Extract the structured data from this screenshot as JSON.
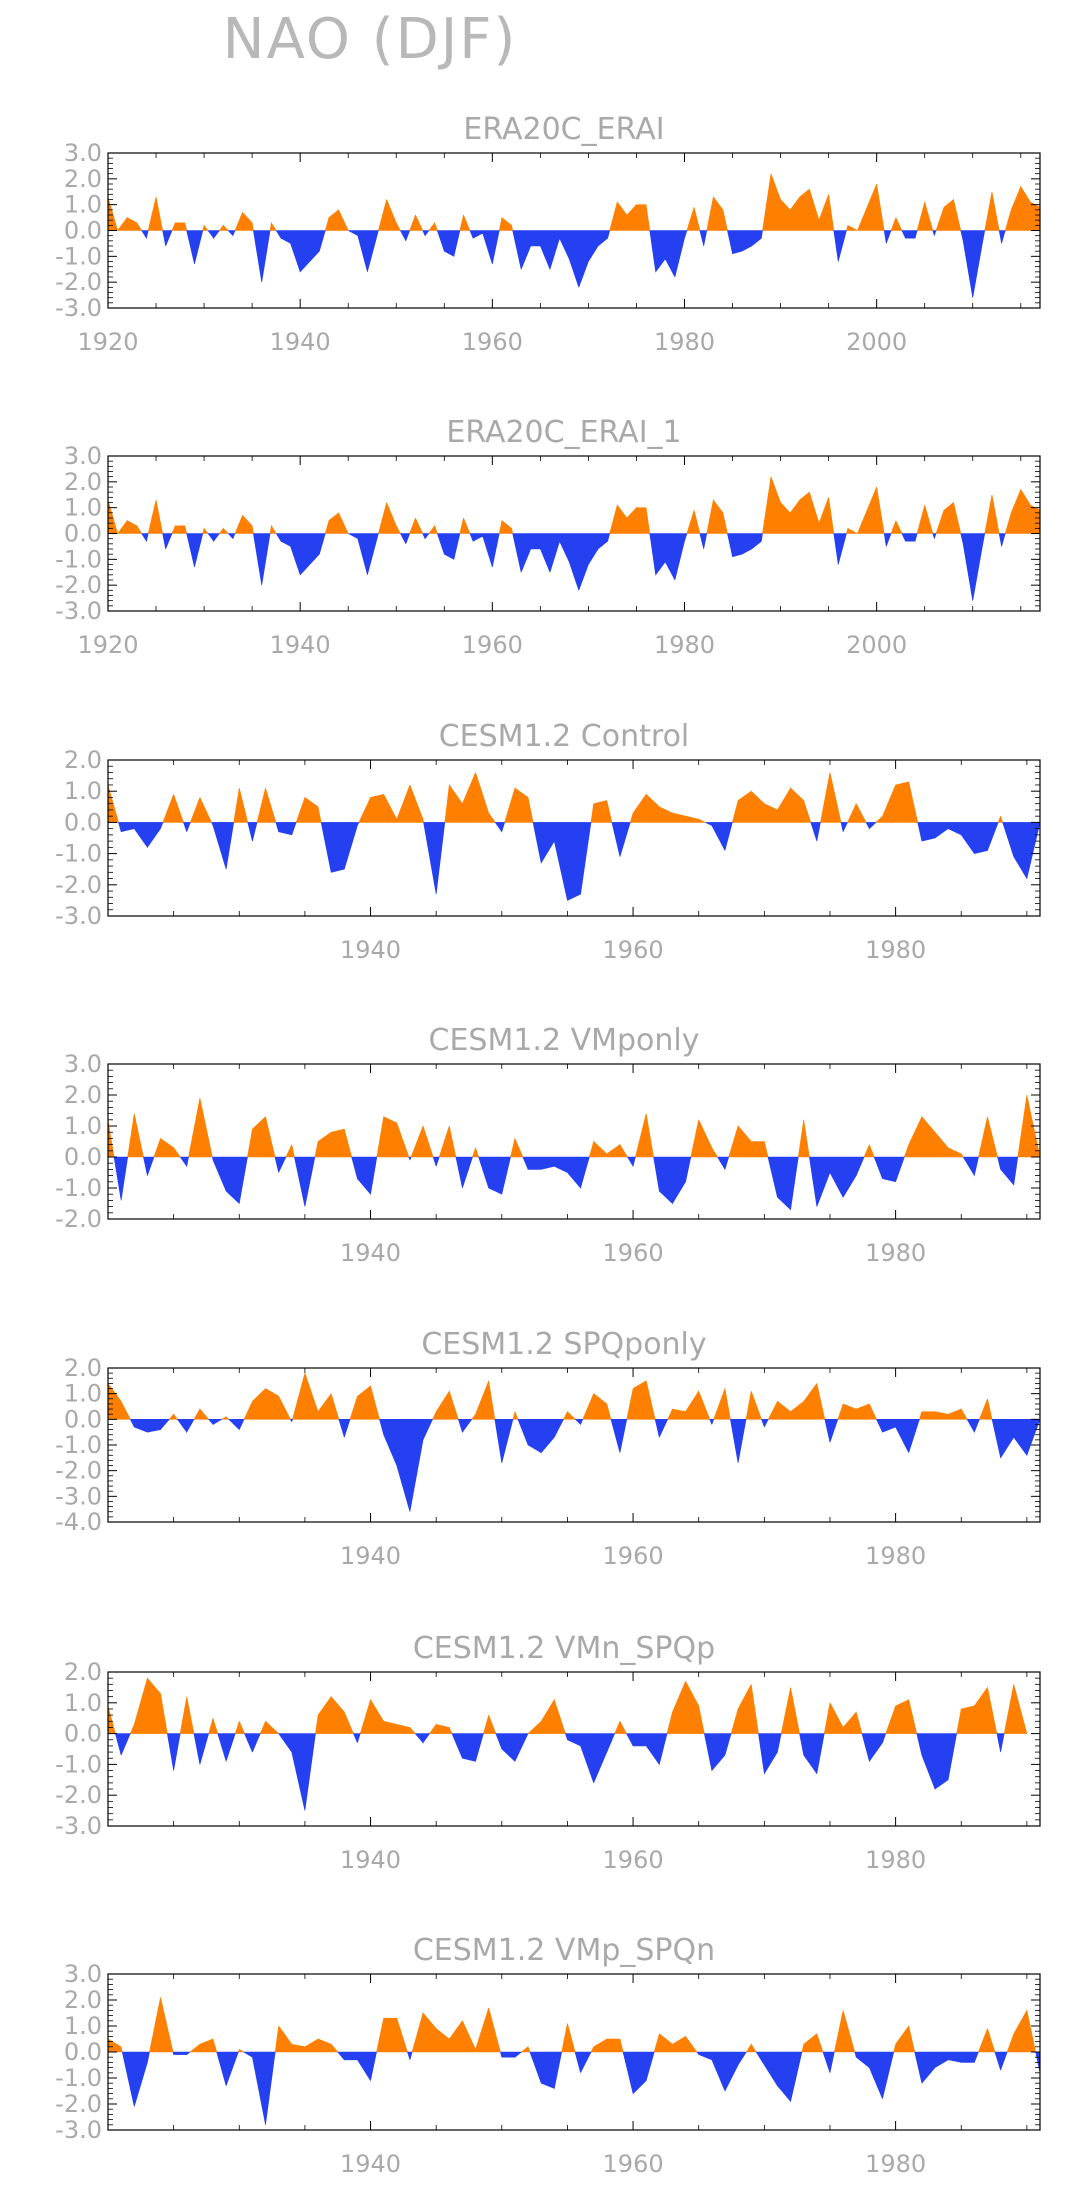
{
  "title": "NAO (DJF)",
  "colors": {
    "positive": "#ff8000",
    "negative": "#2540f0",
    "axis": "#000000",
    "text": "#a9a9a9"
  },
  "chart_data": [
    {
      "type": "area",
      "title": "ERA20C_ERAI",
      "xlim": [
        1920,
        2017
      ],
      "ylim": [
        -3,
        3
      ],
      "yticks": [
        "3.0",
        "2.0",
        "1.0",
        "0.0",
        "-1.0",
        "-2.0",
        "-3.0"
      ],
      "xticks": [
        "1920",
        "1940",
        "1960",
        "1980",
        "2000"
      ],
      "x": [
        1920,
        1921,
        1922,
        1923,
        1924,
        1925,
        1926,
        1927,
        1928,
        1929,
        1930,
        1931,
        1932,
        1933,
        1934,
        1935,
        1936,
        1937,
        1938,
        1939,
        1940,
        1941,
        1942,
        1943,
        1944,
        1945,
        1946,
        1947,
        1948,
        1949,
        1950,
        1951,
        1952,
        1953,
        1954,
        1955,
        1956,
        1957,
        1958,
        1959,
        1960,
        1961,
        1962,
        1963,
        1964,
        1965,
        1966,
        1967,
        1968,
        1969,
        1970,
        1971,
        1972,
        1973,
        1974,
        1975,
        1976,
        1977,
        1978,
        1979,
        1980,
        1981,
        1982,
        1983,
        1984,
        1985,
        1986,
        1987,
        1988,
        1989,
        1990,
        1991,
        1992,
        1993,
        1994,
        1995,
        1996,
        1997,
        1998,
        1999,
        2000,
        2001,
        2002,
        2003,
        2004,
        2005,
        2006,
        2007,
        2008,
        2009,
        2010,
        2011,
        2012,
        2013,
        2014,
        2015,
        2016,
        2017
      ],
      "values": [
        1.3,
        0.0,
        0.5,
        0.3,
        -0.3,
        1.3,
        -0.6,
        0.3,
        0.3,
        -1.3,
        0.2,
        -0.3,
        0.2,
        -0.2,
        0.7,
        0.3,
        -2.0,
        0.3,
        -0.3,
        -0.5,
        -1.6,
        -1.2,
        -0.8,
        0.5,
        0.8,
        0.0,
        -0.2,
        -1.6,
        -0.2,
        1.2,
        0.3,
        -0.4,
        0.6,
        -0.2,
        0.3,
        -0.8,
        -1.0,
        0.6,
        -0.3,
        -0.1,
        -1.3,
        0.5,
        0.2,
        -1.5,
        -0.6,
        -0.6,
        -1.5,
        -0.3,
        -1.1,
        -2.2,
        -1.2,
        -0.6,
        -0.3,
        1.1,
        0.6,
        1.0,
        1.0,
        -1.6,
        -1.1,
        -1.8,
        -0.3,
        0.9,
        -0.6,
        1.3,
        0.8,
        -0.9,
        -0.8,
        -0.6,
        -0.3,
        2.2,
        1.2,
        0.8,
        1.3,
        1.6,
        0.4,
        1.4,
        -1.2,
        0.2,
        0.0,
        0.9,
        1.8,
        -0.5,
        0.5,
        -0.3,
        -0.3,
        1.1,
        -0.2,
        0.9,
        1.2,
        -0.4,
        -2.6,
        -0.5,
        1.5,
        -0.5,
        0.8,
        1.7,
        1.1,
        0.9
      ]
    },
    {
      "type": "area",
      "title": "ERA20C_ERAI_1",
      "xlim": [
        1920,
        2017
      ],
      "ylim": [
        -3,
        3
      ],
      "yticks": [
        "3.0",
        "2.0",
        "1.0",
        "0.0",
        "-1.0",
        "-2.0",
        "-3.0"
      ],
      "xticks": [
        "1920",
        "1940",
        "1960",
        "1980",
        "2000"
      ],
      "x": [
        1920,
        1921,
        1922,
        1923,
        1924,
        1925,
        1926,
        1927,
        1928,
        1929,
        1930,
        1931,
        1932,
        1933,
        1934,
        1935,
        1936,
        1937,
        1938,
        1939,
        1940,
        1941,
        1942,
        1943,
        1944,
        1945,
        1946,
        1947,
        1948,
        1949,
        1950,
        1951,
        1952,
        1953,
        1954,
        1955,
        1956,
        1957,
        1958,
        1959,
        1960,
        1961,
        1962,
        1963,
        1964,
        1965,
        1966,
        1967,
        1968,
        1969,
        1970,
        1971,
        1972,
        1973,
        1974,
        1975,
        1976,
        1977,
        1978,
        1979,
        1980,
        1981,
        1982,
        1983,
        1984,
        1985,
        1986,
        1987,
        1988,
        1989,
        1990,
        1991,
        1992,
        1993,
        1994,
        1995,
        1996,
        1997,
        1998,
        1999,
        2000,
        2001,
        2002,
        2003,
        2004,
        2005,
        2006,
        2007,
        2008,
        2009,
        2010,
        2011,
        2012,
        2013,
        2014,
        2015,
        2016,
        2017
      ],
      "values": [
        1.3,
        0.0,
        0.5,
        0.3,
        -0.3,
        1.3,
        -0.6,
        0.3,
        0.3,
        -1.3,
        0.2,
        -0.3,
        0.2,
        -0.2,
        0.7,
        0.3,
        -2.0,
        0.3,
        -0.3,
        -0.5,
        -1.6,
        -1.2,
        -0.8,
        0.5,
        0.8,
        0.0,
        -0.2,
        -1.6,
        -0.2,
        1.2,
        0.3,
        -0.4,
        0.6,
        -0.2,
        0.3,
        -0.8,
        -1.0,
        0.6,
        -0.3,
        -0.1,
        -1.3,
        0.5,
        0.2,
        -1.5,
        -0.6,
        -0.6,
        -1.5,
        -0.3,
        -1.1,
        -2.2,
        -1.2,
        -0.6,
        -0.3,
        1.1,
        0.6,
        1.0,
        1.0,
        -1.6,
        -1.1,
        -1.8,
        -0.3,
        0.9,
        -0.6,
        1.3,
        0.8,
        -0.9,
        -0.8,
        -0.6,
        -0.3,
        2.2,
        1.2,
        0.8,
        1.3,
        1.6,
        0.4,
        1.4,
        -1.2,
        0.2,
        0.0,
        0.9,
        1.8,
        -0.5,
        0.5,
        -0.3,
        -0.3,
        1.1,
        -0.2,
        0.9,
        1.2,
        -0.4,
        -2.6,
        -0.5,
        1.5,
        -0.5,
        0.8,
        1.7,
        1.1,
        0.9
      ]
    },
    {
      "type": "area",
      "title": "CESM1.2 Control",
      "xlim": [
        1920,
        1991
      ],
      "ylim": [
        -3,
        2
      ],
      "yticks": [
        "2.0",
        "1.0",
        "0.0",
        "-1.0",
        "-2.0",
        "-3.0"
      ],
      "xticks": [
        "1940",
        "1960",
        "1980"
      ],
      "x": [
        1920,
        1921,
        1922,
        1923,
        1924,
        1925,
        1926,
        1927,
        1928,
        1929,
        1930,
        1931,
        1932,
        1933,
        1934,
        1935,
        1936,
        1937,
        1938,
        1939,
        1940,
        1941,
        1942,
        1943,
        1944,
        1945,
        1946,
        1947,
        1948,
        1949,
        1950,
        1951,
        1952,
        1953,
        1954,
        1955,
        1956,
        1957,
        1958,
        1959,
        1960,
        1961,
        1962,
        1963,
        1964,
        1965,
        1966,
        1967,
        1968,
        1969,
        1970,
        1971,
        1972,
        1973,
        1974,
        1975,
        1976,
        1977,
        1978,
        1979,
        1980,
        1981,
        1982,
        1983,
        1984,
        1985,
        1986,
        1987,
        1988,
        1989,
        1990,
        1991
      ],
      "values": [
        1.2,
        -0.3,
        -0.2,
        -0.8,
        -0.2,
        0.9,
        -0.3,
        0.8,
        -0.1,
        -1.5,
        1.1,
        -0.6,
        1.1,
        -0.3,
        -0.4,
        0.8,
        0.5,
        -1.6,
        -1.5,
        -0.1,
        0.8,
        0.9,
        0.1,
        1.2,
        0.1,
        -2.3,
        1.2,
        0.6,
        1.6,
        0.3,
        -0.3,
        1.1,
        0.8,
        -1.3,
        -0.6,
        -2.5,
        -2.3,
        0.6,
        0.7,
        -1.1,
        0.3,
        0.9,
        0.5,
        0.3,
        0.2,
        0.1,
        -0.1,
        -0.9,
        0.7,
        1.0,
        0.6,
        0.4,
        1.1,
        0.7,
        -0.6,
        1.6,
        -0.3,
        0.6,
        -0.2,
        0.2,
        1.2,
        1.3,
        -0.6,
        -0.5,
        -0.2,
        -0.4,
        -1.0,
        -0.9,
        0.2,
        -1.1,
        -1.8,
        0.0
      ]
    },
    {
      "type": "area",
      "title": "CESM1.2 VMponly",
      "xlim": [
        1920,
        1991
      ],
      "ylim": [
        -2,
        3
      ],
      "yticks": [
        "3.0",
        "2.0",
        "1.0",
        "0.0",
        "-1.0",
        "-2.0"
      ],
      "xticks": [
        "1940",
        "1960",
        "1980"
      ],
      "x": [
        1920,
        1921,
        1922,
        1923,
        1924,
        1925,
        1926,
        1927,
        1928,
        1929,
        1930,
        1931,
        1932,
        1933,
        1934,
        1935,
        1936,
        1937,
        1938,
        1939,
        1940,
        1941,
        1942,
        1943,
        1944,
        1945,
        1946,
        1947,
        1948,
        1949,
        1950,
        1951,
        1952,
        1953,
        1954,
        1955,
        1956,
        1957,
        1958,
        1959,
        1960,
        1961,
        1962,
        1963,
        1964,
        1965,
        1966,
        1967,
        1968,
        1969,
        1970,
        1971,
        1972,
        1973,
        1974,
        1975,
        1976,
        1977,
        1978,
        1979,
        1980,
        1981,
        1982,
        1983,
        1984,
        1985,
        1986,
        1987,
        1988,
        1989,
        1990,
        1991
      ],
      "values": [
        1.2,
        -1.4,
        1.4,
        -0.6,
        0.6,
        0.3,
        -0.3,
        1.9,
        -0.1,
        -1.1,
        -1.5,
        0.9,
        1.3,
        -0.5,
        0.4,
        -1.6,
        0.5,
        0.8,
        0.9,
        -0.7,
        -1.2,
        1.3,
        1.1,
        -0.1,
        1.0,
        -0.3,
        1.0,
        -1.0,
        0.3,
        -1.0,
        -1.2,
        0.6,
        -0.4,
        -0.4,
        -0.3,
        -0.5,
        -1.0,
        0.5,
        0.1,
        0.4,
        -0.3,
        1.4,
        -1.1,
        -1.5,
        -0.8,
        1.2,
        0.3,
        -0.4,
        1.0,
        0.5,
        0.5,
        -1.3,
        -1.7,
        1.2,
        -1.6,
        -0.5,
        -1.3,
        -0.6,
        0.4,
        -0.7,
        -0.8,
        0.4,
        1.3,
        0.8,
        0.3,
        0.1,
        -0.6,
        1.3,
        -0.4,
        -0.9,
        2.0,
        0.0
      ]
    },
    {
      "type": "area",
      "title": "CESM1.2 SPQponly",
      "xlim": [
        1920,
        1991
      ],
      "ylim": [
        -4,
        2
      ],
      "yticks": [
        "2.0",
        "1.0",
        "0.0",
        "-1.0",
        "-2.0",
        "-3.0",
        "-4.0"
      ],
      "xticks": [
        "1940",
        "1960",
        "1980"
      ],
      "x": [
        1920,
        1921,
        1922,
        1923,
        1924,
        1925,
        1926,
        1927,
        1928,
        1929,
        1930,
        1931,
        1932,
        1933,
        1934,
        1935,
        1936,
        1937,
        1938,
        1939,
        1940,
        1941,
        1942,
        1943,
        1944,
        1945,
        1946,
        1947,
        1948,
        1949,
        1950,
        1951,
        1952,
        1953,
        1954,
        1955,
        1956,
        1957,
        1958,
        1959,
        1960,
        1961,
        1962,
        1963,
        1964,
        1965,
        1966,
        1967,
        1968,
        1969,
        1970,
        1971,
        1972,
        1973,
        1974,
        1975,
        1976,
        1977,
        1978,
        1979,
        1980,
        1981,
        1982,
        1983,
        1984,
        1985,
        1986,
        1987,
        1988,
        1989,
        1990,
        1991
      ],
      "values": [
        1.4,
        0.7,
        -0.3,
        -0.5,
        -0.4,
        0.2,
        -0.5,
        0.4,
        -0.2,
        0.1,
        -0.4,
        0.7,
        1.2,
        0.9,
        -0.1,
        1.8,
        0.3,
        1.0,
        -0.7,
        0.9,
        1.3,
        -0.6,
        -1.8,
        -3.6,
        -0.8,
        0.3,
        1.1,
        -0.5,
        0.2,
        1.5,
        -1.7,
        0.3,
        -1.0,
        -1.3,
        -0.7,
        0.3,
        -0.2,
        1.0,
        0.6,
        -1.3,
        1.2,
        1.5,
        -0.7,
        0.4,
        0.3,
        1.1,
        -0.2,
        1.2,
        -1.7,
        1.1,
        -0.3,
        0.7,
        0.3,
        0.7,
        1.4,
        -0.9,
        0.6,
        0.4,
        0.6,
        -0.5,
        -0.3,
        -1.3,
        0.3,
        0.3,
        0.2,
        0.4,
        -0.5,
        0.8,
        -1.5,
        -0.7,
        -1.4,
        0.0
      ]
    },
    {
      "type": "area",
      "title": "CESM1.2 VMn_SPQp",
      "xlim": [
        1920,
        1991
      ],
      "ylim": [
        -3,
        2
      ],
      "yticks": [
        "2.0",
        "1.0",
        "0.0",
        "-1.0",
        "-2.0",
        "-3.0"
      ],
      "xticks": [
        "1940",
        "1960",
        "1980"
      ],
      "x": [
        1920,
        1921,
        1922,
        1923,
        1924,
        1925,
        1926,
        1927,
        1928,
        1929,
        1930,
        1931,
        1932,
        1933,
        1934,
        1935,
        1936,
        1937,
        1938,
        1939,
        1940,
        1941,
        1942,
        1943,
        1944,
        1945,
        1946,
        1947,
        1948,
        1949,
        1950,
        1951,
        1952,
        1953,
        1954,
        1955,
        1956,
        1957,
        1958,
        1959,
        1960,
        1961,
        1962,
        1963,
        1964,
        1965,
        1966,
        1967,
        1968,
        1969,
        1970,
        1971,
        1972,
        1973,
        1974,
        1975,
        1976,
        1977,
        1978,
        1979,
        1980,
        1981,
        1982,
        1983,
        1984,
        1985,
        1986,
        1987,
        1988,
        1989,
        1990,
        1991
      ],
      "values": [
        0.9,
        -0.7,
        0.3,
        1.8,
        1.3,
        -1.2,
        1.2,
        -1.0,
        0.5,
        -0.9,
        0.4,
        -0.6,
        0.4,
        0.0,
        -0.6,
        -2.5,
        0.6,
        1.2,
        0.7,
        -0.3,
        1.1,
        0.4,
        0.3,
        0.2,
        -0.3,
        0.3,
        0.2,
        -0.8,
        -0.9,
        0.6,
        -0.5,
        -0.9,
        0.0,
        0.4,
        1.1,
        -0.2,
        -0.4,
        -1.6,
        -0.6,
        0.4,
        -0.4,
        -0.4,
        -1.0,
        0.7,
        1.7,
        0.9,
        -1.2,
        -0.7,
        0.8,
        1.6,
        -1.3,
        -0.6,
        1.5,
        -0.7,
        -1.3,
        1.0,
        0.2,
        0.7,
        -0.9,
        -0.3,
        0.9,
        1.1,
        -0.7,
        -1.8,
        -1.5,
        0.8,
        0.9,
        1.5,
        -0.6,
        1.6,
        0.0,
        0.0
      ]
    },
    {
      "type": "area",
      "title": "CESM1.2 VMp_SPQn",
      "xlim": [
        1920,
        1991
      ],
      "ylim": [
        -3,
        3
      ],
      "yticks": [
        "3.0",
        "2.0",
        "1.0",
        "0.0",
        "-1.0",
        "-2.0",
        "-3.0"
      ],
      "xticks": [
        "1940",
        "1960",
        "1980"
      ],
      "x": [
        1920,
        1921,
        1922,
        1923,
        1924,
        1925,
        1926,
        1927,
        1928,
        1929,
        1930,
        1931,
        1932,
        1933,
        1934,
        1935,
        1936,
        1937,
        1938,
        1939,
        1940,
        1941,
        1942,
        1943,
        1944,
        1945,
        1946,
        1947,
        1948,
        1949,
        1950,
        1951,
        1952,
        1953,
        1954,
        1955,
        1956,
        1957,
        1958,
        1959,
        1960,
        1961,
        1962,
        1963,
        1964,
        1965,
        1966,
        1967,
        1968,
        1969,
        1970,
        1971,
        1972,
        1973,
        1974,
        1975,
        1976,
        1977,
        1978,
        1979,
        1980,
        1981,
        1982,
        1983,
        1984,
        1985,
        1986,
        1987,
        1988,
        1989,
        1990,
        1991
      ],
      "values": [
        0.5,
        0.2,
        -2.1,
        -0.4,
        2.1,
        -0.1,
        -0.1,
        0.3,
        0.5,
        -1.3,
        0.1,
        -0.2,
        -2.8,
        1.0,
        0.3,
        0.2,
        0.5,
        0.3,
        -0.3,
        -0.3,
        -1.1,
        1.3,
        1.3,
        -0.3,
        1.5,
        0.9,
        0.5,
        1.2,
        0.1,
        1.7,
        -0.2,
        -0.2,
        0.2,
        -1.2,
        -1.4,
        1.1,
        -0.8,
        0.2,
        0.5,
        0.5,
        -1.6,
        -1.1,
        0.7,
        0.3,
        0.6,
        -0.1,
        -0.3,
        -1.5,
        -0.5,
        0.3,
        -0.5,
        -1.3,
        -1.9,
        0.3,
        0.7,
        -0.8,
        1.6,
        -0.2,
        -0.6,
        -1.8,
        0.3,
        1.0,
        -1.2,
        -0.6,
        -0.3,
        -0.4,
        -0.4,
        0.9,
        -0.7,
        0.7,
        1.6,
        -0.8
      ]
    }
  ]
}
